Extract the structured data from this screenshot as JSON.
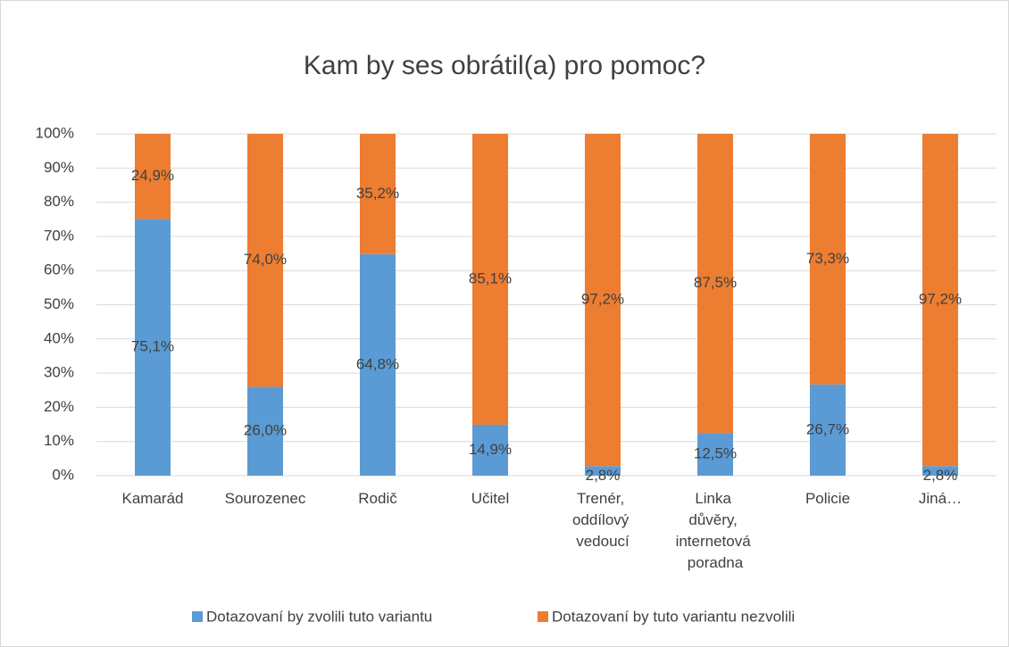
{
  "chart_data": {
    "type": "stacked_bar",
    "title": "Kam by ses obrátil(a) pro pomoc?",
    "categories": [
      "Kamarád",
      "Sourozenec",
      "Rodič",
      "Učitel",
      "Trenér, oddílový vedoucí",
      "Linka důvěry, internetová poradna",
      "Policie",
      "Jiná…"
    ],
    "series": [
      {
        "name": "Dotazovaní by zvolili tuto variantu",
        "color": "#5b9bd5",
        "values": [
          75.1,
          26.0,
          64.8,
          14.9,
          2.8,
          12.5,
          26.7,
          2.8
        ],
        "value_labels": [
          "75,1%",
          "26,0%",
          "64,8%",
          "14,9%",
          "2,8%",
          "12,5%",
          "26,7%",
          "2,8%"
        ]
      },
      {
        "name": "Dotazovaní by tuto variantu nezvolili",
        "color": "#ed7d31",
        "values": [
          24.9,
          74.0,
          35.2,
          85.1,
          97.2,
          87.5,
          73.3,
          97.2
        ],
        "value_labels": [
          "24,9%",
          "74,0%",
          "35,2%",
          "85,1%",
          "97,2%",
          "87,5%",
          "73,3%",
          "97,2%"
        ]
      }
    ],
    "ylim": [
      0,
      100
    ],
    "yticks": [
      {
        "value": 0,
        "label": "0%"
      },
      {
        "value": 10,
        "label": "10%"
      },
      {
        "value": 20,
        "label": "20%"
      },
      {
        "value": 30,
        "label": "30%"
      },
      {
        "value": 40,
        "label": "40%"
      },
      {
        "value": 50,
        "label": "50%"
      },
      {
        "value": 60,
        "label": "60%"
      },
      {
        "value": 70,
        "label": "70%"
      },
      {
        "value": 80,
        "label": "80%"
      },
      {
        "value": 90,
        "label": "90%"
      },
      {
        "value": 100,
        "label": "100%"
      }
    ],
    "grid": true,
    "legend": "bottom"
  }
}
